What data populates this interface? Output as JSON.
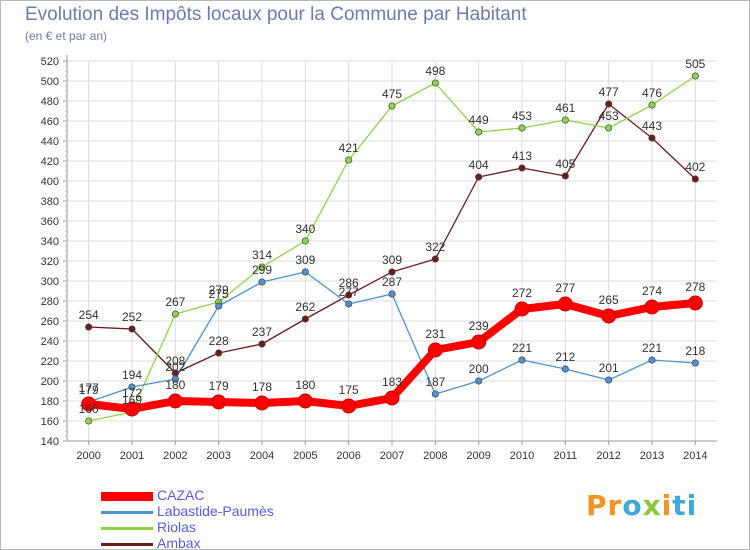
{
  "chart_data": {
    "type": "line",
    "title": "Evolution des Impôts locaux pour la Commune par Habitant",
    "subtitle": "(en € et par an)",
    "xlabel": "",
    "ylabel": "",
    "ylim": [
      140,
      520
    ],
    "ystep": 20,
    "grid": true,
    "legend_position": "bottom-left",
    "x": [
      "2000",
      "2001",
      "2002",
      "2003",
      "2004",
      "2005",
      "2006",
      "2007",
      "2008",
      "2009",
      "2010",
      "2011",
      "2012",
      "2013",
      "2014"
    ],
    "series": [
      {
        "name": "CAZAC",
        "color": "#ff0000",
        "values": [
          177,
          172,
          180,
          179,
          178,
          180,
          175,
          183,
          231,
          239,
          272,
          277,
          265,
          274,
          278
        ]
      },
      {
        "name": "Labastide-Paumès",
        "color": "#4f92cf",
        "values": [
          179,
          194,
          202,
          275,
          299,
          309,
          277,
          287,
          187,
          200,
          221,
          212,
          201,
          221,
          218
        ]
      },
      {
        "name": "Riolas",
        "color": "#8ed44a",
        "values": [
          160,
          169,
          267,
          279,
          314,
          340,
          421,
          475,
          498,
          449,
          453,
          461,
          453,
          476,
          505
        ]
      },
      {
        "name": "Ambax",
        "color": "#6b1d1d",
        "values": [
          254,
          252,
          208,
          228,
          237,
          262,
          286,
          309,
          322,
          404,
          413,
          405,
          477,
          443,
          402
        ]
      }
    ]
  },
  "logo": {
    "p1": "Pr",
    "p2": "o",
    "p3": "x",
    "p4": "i",
    "p5": "ti"
  }
}
